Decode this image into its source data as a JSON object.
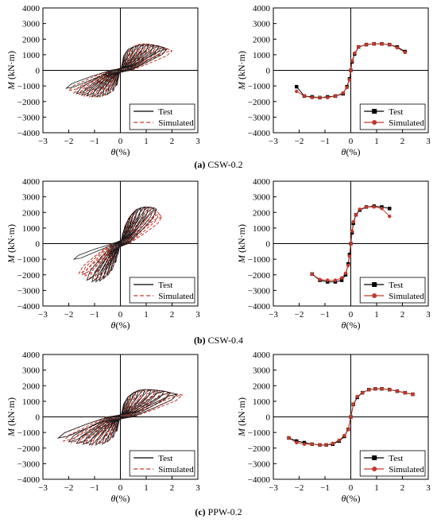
{
  "figure": {
    "captions": [
      {
        "letter": "(a)",
        "text": "CSW-0.2"
      },
      {
        "letter": "(b)",
        "text": "CSW-0.4"
      },
      {
        "letter": "(c)",
        "text": "PPW-0.2"
      }
    ],
    "xlabel_symbol": "θ",
    "xlabel_unit": "(%)",
    "ylabel_symbol": "M",
    "ylabel_unit": "(kN·m)",
    "legend": [
      "Test",
      "Simulated"
    ],
    "colors": {
      "test": "#000000",
      "simulated": "#c0392b",
      "hyst_test": "#1a1a1a",
      "hyst_sim": "#c0392b"
    }
  },
  "chart_data": [
    {
      "id": "a-hysteresis",
      "type": "line",
      "panel": "CSW-0.2 hysteresis",
      "xlim": [
        -3,
        3
      ],
      "ylim": [
        -4000,
        4000
      ],
      "xticks": [
        -3,
        -2,
        -1,
        0,
        1,
        2,
        3
      ],
      "yticks": [
        4000,
        3000,
        2000,
        1000,
        0,
        -1000,
        -2000,
        -3000,
        -4000
      ],
      "series": [
        {
          "name": "Test",
          "amplitudes": [
            0.15,
            0.3,
            0.5,
            0.7,
            0.9,
            1.1,
            1.3,
            1.5,
            1.7,
            1.8
          ],
          "peaks": [
            1000,
            1350,
            1500,
            1600,
            1650,
            1650,
            1600,
            1550,
            1450,
            1350
          ],
          "neg_amplitudes": [
            -0.15,
            -0.3,
            -0.5,
            -0.7,
            -0.9,
            -1.1,
            -1.3,
            -1.5,
            -1.7,
            -2.1
          ],
          "neg_peaks": [
            -1000,
            -1350,
            -1550,
            -1650,
            -1700,
            -1700,
            -1650,
            -1600,
            -1500,
            -1150
          ]
        },
        {
          "name": "Simulated",
          "amplitudes": [
            0.2,
            0.4,
            0.6,
            0.8,
            1.0,
            1.2,
            1.4,
            1.6,
            1.8,
            2.0
          ],
          "peaks": [
            1000,
            1400,
            1600,
            1700,
            1700,
            1650,
            1600,
            1500,
            1400,
            1250
          ],
          "neg_amplitudes": [
            -0.2,
            -0.4,
            -0.6,
            -0.8,
            -1.0,
            -1.2,
            -1.4,
            -1.6,
            -1.8,
            -2.0
          ],
          "neg_peaks": [
            -1050,
            -1450,
            -1650,
            -1700,
            -1750,
            -1700,
            -1650,
            -1550,
            -1450,
            -1300
          ]
        }
      ]
    },
    {
      "id": "a-skeleton",
      "type": "line",
      "panel": "CSW-0.2 skeleton",
      "xlim": [
        -3,
        3
      ],
      "ylim": [
        -4000,
        4000
      ],
      "xticks": [
        -3,
        -2,
        -1,
        0,
        1,
        2,
        3
      ],
      "yticks": [
        4000,
        3000,
        2000,
        1000,
        0,
        -1000,
        -2000,
        -3000,
        -4000
      ],
      "series": [
        {
          "name": "Test",
          "x": [
            -2.1,
            -1.8,
            -1.5,
            -1.2,
            -0.9,
            -0.6,
            -0.3,
            -0.15,
            -0.05,
            0,
            0.05,
            0.15,
            0.3,
            0.6,
            0.9,
            1.2,
            1.5,
            1.8,
            2.1
          ],
          "y": [
            -1050,
            -1650,
            -1700,
            -1750,
            -1700,
            -1650,
            -1500,
            -1050,
            -550,
            0,
            550,
            1050,
            1500,
            1650,
            1700,
            1700,
            1650,
            1500,
            1200
          ]
        },
        {
          "name": "Simulated",
          "x": [
            -2.1,
            -1.8,
            -1.5,
            -1.2,
            -0.9,
            -0.6,
            -0.3,
            -0.15,
            -0.05,
            0,
            0.05,
            0.15,
            0.3,
            0.6,
            0.9,
            1.2,
            1.5,
            1.8,
            2.1
          ],
          "y": [
            -1350,
            -1650,
            -1750,
            -1750,
            -1750,
            -1650,
            -1450,
            -1100,
            -600,
            0,
            600,
            1100,
            1500,
            1650,
            1700,
            1700,
            1650,
            1450,
            1150
          ]
        }
      ]
    },
    {
      "id": "b-hysteresis",
      "type": "line",
      "panel": "CSW-0.4 hysteresis",
      "xlim": [
        -3,
        3
      ],
      "ylim": [
        -4000,
        4000
      ],
      "xticks": [
        -3,
        -2,
        -1,
        0,
        1,
        2,
        3
      ],
      "yticks": [
        4000,
        3000,
        2000,
        1000,
        0,
        -1000,
        -2000,
        -3000,
        -4000
      ],
      "series": [
        {
          "name": "Test",
          "amplitudes": [
            0.1,
            0.2,
            0.35,
            0.5,
            0.65,
            0.8,
            0.95,
            1.1,
            1.3,
            1.4
          ],
          "peaks": [
            700,
            1200,
            1700,
            2000,
            2200,
            2300,
            2350,
            2350,
            2300,
            2200
          ],
          "neg_amplitudes": [
            -0.1,
            -0.2,
            -0.35,
            -0.5,
            -0.65,
            -0.8,
            -0.95,
            -1.1,
            -1.3,
            -1.8
          ],
          "neg_peaks": [
            -700,
            -1250,
            -1750,
            -2050,
            -2250,
            -2400,
            -2450,
            -2450,
            -2350,
            -1000
          ]
        },
        {
          "name": "Simulated",
          "amplitudes": [
            0.15,
            0.3,
            0.45,
            0.6,
            0.8,
            1.0,
            1.2,
            1.4,
            1.5,
            1.6
          ],
          "peaks": [
            900,
            1450,
            1900,
            2150,
            2300,
            2350,
            2300,
            2100,
            1900,
            1700
          ],
          "neg_amplitudes": [
            -0.15,
            -0.3,
            -0.45,
            -0.6,
            -0.8,
            -1.0,
            -1.2,
            -1.4,
            -1.5,
            -1.6
          ],
          "neg_peaks": [
            -900,
            -1450,
            -1900,
            -2150,
            -2300,
            -2350,
            -2300,
            -2100,
            -2000,
            -1900
          ]
        }
      ]
    },
    {
      "id": "b-skeleton",
      "type": "line",
      "panel": "CSW-0.4 skeleton",
      "xlim": [
        -3,
        3
      ],
      "ylim": [
        -4000,
        4000
      ],
      "xticks": [
        -3,
        -2,
        -1,
        0,
        1,
        2,
        3
      ],
      "yticks": [
        4000,
        3000,
        2000,
        1000,
        0,
        -1000,
        -2000,
        -3000,
        -4000
      ],
      "series": [
        {
          "name": "Test",
          "x": [
            -1.5,
            -1.2,
            -0.9,
            -0.6,
            -0.35,
            -0.2,
            -0.1,
            -0.05,
            0,
            0.05,
            0.1,
            0.2,
            0.35,
            0.6,
            0.9,
            1.2,
            1.5
          ],
          "y": [
            -1950,
            -2350,
            -2450,
            -2450,
            -2350,
            -2000,
            -1300,
            -700,
            0,
            700,
            1300,
            1850,
            2150,
            2350,
            2400,
            2350,
            2250
          ]
        },
        {
          "name": "Simulated",
          "x": [
            -1.5,
            -1.2,
            -0.9,
            -0.6,
            -0.35,
            -0.2,
            -0.1,
            -0.05,
            0,
            0.05,
            0.1,
            0.2,
            0.35,
            0.6,
            0.9,
            1.2,
            1.5
          ],
          "y": [
            -1950,
            -2300,
            -2350,
            -2350,
            -2200,
            -1900,
            -1400,
            -800,
            0,
            800,
            1400,
            1850,
            2200,
            2350,
            2350,
            2250,
            1750
          ]
        }
      ]
    },
    {
      "id": "c-hysteresis",
      "type": "line",
      "panel": "PPW-0.2 hysteresis",
      "xlim": [
        -3,
        3
      ],
      "ylim": [
        -4000,
        4000
      ],
      "xticks": [
        -3,
        -2,
        -1,
        0,
        1,
        2,
        3
      ],
      "yticks": [
        4000,
        3000,
        2000,
        1000,
        0,
        -1000,
        -2000,
        -3000,
        -4000
      ],
      "series": [
        {
          "name": "Test",
          "amplitudes": [
            0.15,
            0.3,
            0.5,
            0.7,
            0.95,
            1.2,
            1.45,
            1.7,
            1.95,
            2.2
          ],
          "peaks": [
            900,
            1300,
            1550,
            1700,
            1750,
            1750,
            1700,
            1650,
            1550,
            1450
          ],
          "neg_amplitudes": [
            -0.15,
            -0.3,
            -0.5,
            -0.7,
            -0.95,
            -1.2,
            -1.45,
            -1.7,
            -2.0,
            -2.4
          ],
          "neg_peaks": [
            -950,
            -1350,
            -1600,
            -1750,
            -1800,
            -1800,
            -1750,
            -1700,
            -1600,
            -1350
          ]
        },
        {
          "name": "Simulated",
          "amplitudes": [
            0.2,
            0.4,
            0.6,
            0.85,
            1.1,
            1.35,
            1.6,
            1.9,
            2.2,
            2.4
          ],
          "peaks": [
            1000,
            1400,
            1600,
            1750,
            1750,
            1700,
            1650,
            1550,
            1450,
            1400
          ],
          "neg_amplitudes": [
            -0.2,
            -0.4,
            -0.6,
            -0.85,
            -1.1,
            -1.35,
            -1.6,
            -1.9,
            -2.2,
            -2.4
          ],
          "neg_peaks": [
            -1000,
            -1450,
            -1650,
            -1750,
            -1800,
            -1750,
            -1700,
            -1650,
            -1550,
            -1350
          ]
        }
      ]
    },
    {
      "id": "c-skeleton",
      "type": "line",
      "panel": "PPW-0.2 skeleton",
      "xlim": [
        -3,
        3
      ],
      "ylim": [
        -4000,
        4000
      ],
      "xticks": [
        -3,
        -2,
        -1,
        0,
        1,
        2,
        3
      ],
      "yticks": [
        4000,
        3000,
        2000,
        1000,
        0,
        -1000,
        -2000,
        -3000,
        -4000
      ],
      "series": [
        {
          "name": "Test",
          "x": [
            -2.4,
            -2.1,
            -1.8,
            -1.5,
            -1.2,
            -0.95,
            -0.7,
            -0.45,
            -0.25,
            -0.1,
            0,
            0.1,
            0.25,
            0.45,
            0.7,
            0.95,
            1.2,
            1.5,
            1.8,
            2.1,
            2.4
          ],
          "y": [
            -1350,
            -1550,
            -1650,
            -1750,
            -1800,
            -1800,
            -1750,
            -1550,
            -1250,
            -800,
            0,
            800,
            1250,
            1550,
            1750,
            1800,
            1800,
            1750,
            1650,
            1550,
            1450
          ]
        },
        {
          "name": "Simulated",
          "x": [
            -2.4,
            -2.1,
            -1.8,
            -1.5,
            -1.2,
            -0.95,
            -0.7,
            -0.45,
            -0.25,
            -0.1,
            0,
            0.1,
            0.25,
            0.45,
            0.7,
            0.95,
            1.2,
            1.5,
            1.8,
            2.1,
            2.4
          ],
          "y": [
            -1350,
            -1650,
            -1750,
            -1750,
            -1800,
            -1800,
            -1700,
            -1500,
            -1200,
            -800,
            0,
            800,
            1300,
            1550,
            1750,
            1800,
            1800,
            1750,
            1650,
            1550,
            1450
          ]
        }
      ]
    }
  ]
}
